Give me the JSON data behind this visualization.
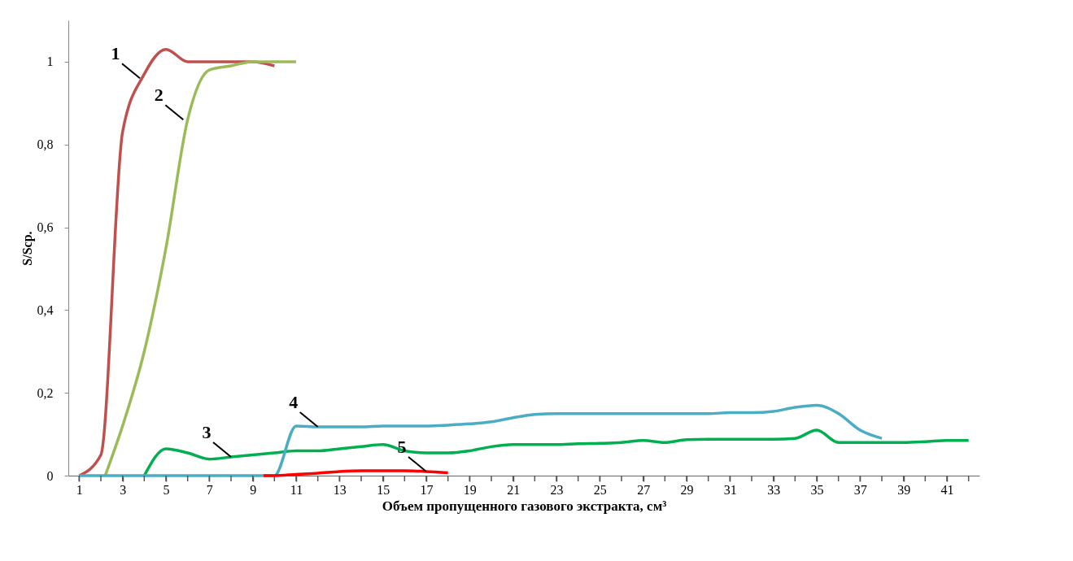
{
  "chart_data": {
    "type": "line",
    "xlabel": "Объем пропущенного газового экстракта, см³",
    "ylabel": "S/Sср.",
    "xlim": [
      0.5,
      42.5
    ],
    "xticks": [
      1,
      {
        "value": 2,
        "label": null
      },
      3,
      {
        "value": 4,
        "label": null
      },
      5,
      {
        "value": 6,
        "label": null
      },
      7,
      {
        "value": 8,
        "label": null
      },
      9,
      {
        "value": 10,
        "label": null
      },
      11,
      {
        "value": 12,
        "label": null
      },
      13,
      {
        "value": 14,
        "label": null
      },
      15,
      {
        "value": 16,
        "label": null
      },
      17,
      {
        "value": 18,
        "label": null
      },
      19,
      {
        "value": 20,
        "label": null
      },
      21,
      {
        "value": 22,
        "label": null
      },
      23,
      {
        "value": 24,
        "label": null
      },
      25,
      {
        "value": 26,
        "label": null
      },
      27,
      {
        "value": 28,
        "label": null
      },
      29,
      {
        "value": 30,
        "label": null
      },
      31,
      {
        "value": 32,
        "label": null
      },
      33,
      {
        "value": 34,
        "label": null
      },
      35,
      {
        "value": 36,
        "label": null
      },
      37,
      {
        "value": 38,
        "label": null
      },
      39,
      {
        "value": 40,
        "label": null
      },
      41,
      {
        "value": 42,
        "label": null
      }
    ],
    "ylim": [
      0,
      1.1
    ],
    "yticks": [
      0,
      {
        "value": 0.2,
        "label": "0,2"
      },
      {
        "value": 0.4,
        "label": "0,4"
      },
      {
        "value": 0.6,
        "label": "0,6"
      },
      {
        "value": 0.8,
        "label": "0,8"
      },
      1
    ],
    "grid": false,
    "marker": "none",
    "line_style": "solid",
    "series": [
      {
        "color": "#c0504d",
        "x": [
          1,
          2,
          3,
          4,
          5,
          6,
          7,
          8,
          9,
          10
        ],
        "values": [
          0,
          0.05,
          0.83,
          0.97,
          1.03,
          1.0,
          1.0,
          1.0,
          1.0,
          0.99
        ]
      },
      {
        "color": "#9bbb59",
        "x": [
          2.2,
          3,
          4,
          5,
          6,
          7,
          8,
          9,
          10,
          11
        ],
        "values": [
          0,
          0.12,
          0.3,
          0.55,
          0.86,
          0.98,
          0.99,
          1.0,
          1.0,
          1.0
        ]
      },
      {
        "color": "#00b050",
        "x": [
          4,
          5,
          6,
          7,
          8,
          9,
          10,
          11,
          12,
          13,
          14,
          15,
          16,
          17,
          18,
          19,
          20,
          21,
          22,
          23,
          24,
          25,
          26,
          27,
          28,
          29,
          30,
          31,
          32,
          33,
          34,
          35,
          36,
          37,
          38,
          39,
          40,
          41,
          42
        ],
        "values": [
          0,
          0.065,
          0.055,
          0.04,
          0.045,
          0.05,
          0.055,
          0.06,
          0.06,
          0.065,
          0.07,
          0.075,
          0.06,
          0.055,
          0.055,
          0.06,
          0.07,
          0.075,
          0.075,
          0.075,
          0.077,
          0.078,
          0.08,
          0.085,
          0.08,
          0.087,
          0.088,
          0.088,
          0.088,
          0.088,
          0.09,
          0.11,
          0.08,
          0.08,
          0.08,
          0.08,
          0.082,
          0.085,
          0.085
        ]
      },
      {
        "color": "#4bacc6",
        "x": [
          1,
          2,
          3,
          4,
          5,
          6,
          7,
          8,
          9,
          10,
          11,
          12,
          13,
          14,
          15,
          16,
          17,
          18,
          19,
          20,
          21,
          22,
          23,
          24,
          25,
          26,
          27,
          28,
          29,
          30,
          31,
          32,
          33,
          34,
          35,
          36,
          37,
          38
        ],
        "values": [
          0,
          0,
          0,
          0,
          0,
          0,
          0,
          0,
          0,
          0,
          0.12,
          0.118,
          0.118,
          0.118,
          0.12,
          0.12,
          0.12,
          0.122,
          0.125,
          0.13,
          0.14,
          0.148,
          0.15,
          0.15,
          0.15,
          0.15,
          0.15,
          0.15,
          0.15,
          0.15,
          0.152,
          0.152,
          0.155,
          0.165,
          0.17,
          0.15,
          0.11,
          0.09
        ]
      },
      {
        "color": "#ff0000",
        "x": [
          9.5,
          10,
          11,
          12,
          13,
          14,
          15,
          16,
          17,
          18
        ],
        "values": [
          0,
          0,
          0.003,
          0.006,
          0.01,
          0.012,
          0.012,
          0.012,
          0.01,
          0.007
        ]
      }
    ],
    "annotations": [
      {
        "text": "1",
        "x": 3.8,
        "y": 0.96
      },
      {
        "text": "2",
        "x": 5.8,
        "y": 0.86
      },
      {
        "text": "3",
        "x": 8,
        "y": 0.045
      },
      {
        "text": "4",
        "x": 12,
        "y": 0.118
      },
      {
        "text": "5",
        "x": 17,
        "y": 0.01
      }
    ]
  }
}
